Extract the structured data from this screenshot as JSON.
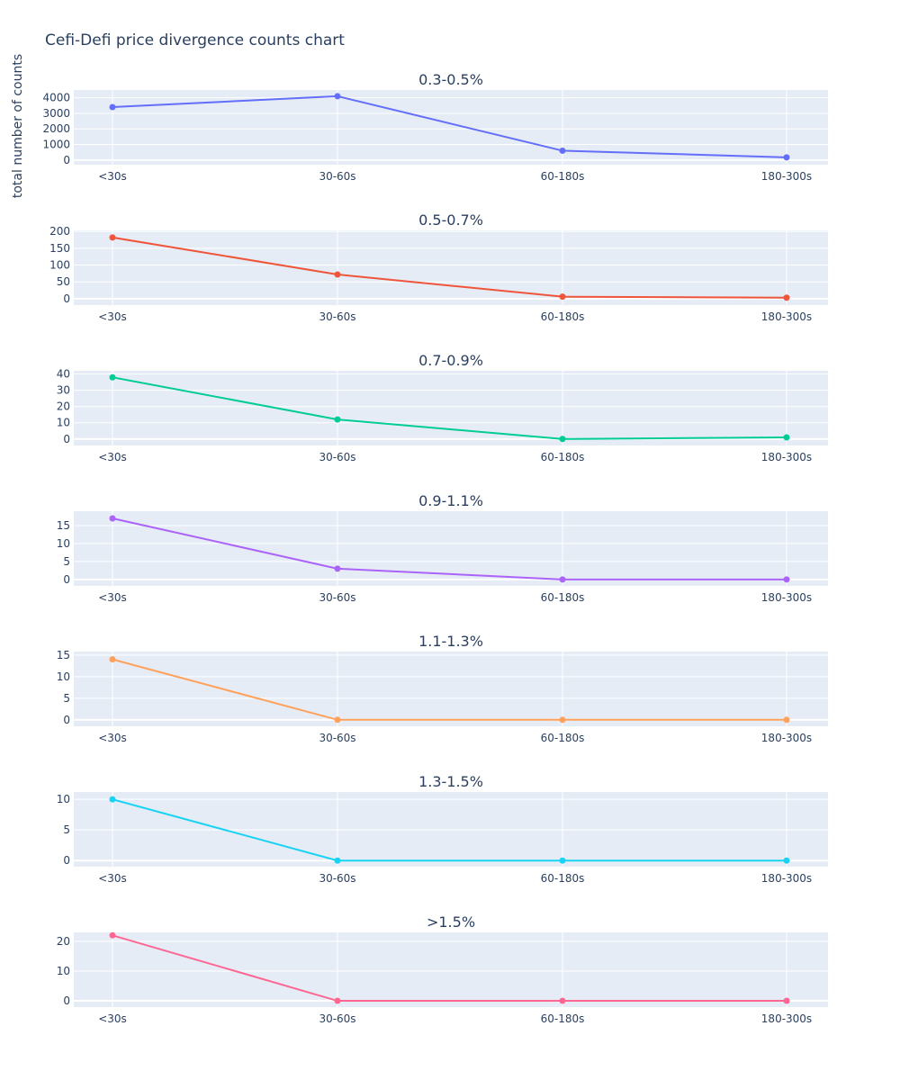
{
  "chart_data": {
    "type": "line",
    "title": "Cefi-Defi price divergence counts chart",
    "ylabel": "total number of counts",
    "xlabel": "",
    "categories": [
      "<30s",
      "30-60s",
      "60-180s",
      "180-300s"
    ],
    "grid": true,
    "legend": "none",
    "subplots": [
      {
        "title": "0.3-0.5%",
        "color": "#636efa",
        "values": [
          3400,
          4100,
          600,
          170
        ],
        "ylim": [
          -300,
          4500
        ],
        "yticks": [
          0,
          1000,
          2000,
          3000,
          4000
        ]
      },
      {
        "title": "0.5-0.7%",
        "color": "#ef553b",
        "values": [
          182,
          72,
          6,
          3
        ],
        "ylim": [
          -19,
          203
        ],
        "yticks": [
          0,
          50,
          100,
          150,
          200
        ]
      },
      {
        "title": "0.7-0.9%",
        "color": "#00cc96",
        "values": [
          38,
          12,
          0,
          1
        ],
        "ylim": [
          -4,
          42
        ],
        "yticks": [
          0,
          10,
          20,
          30,
          40
        ]
      },
      {
        "title": "0.9-1.1%",
        "color": "#ab63fa",
        "values": [
          17,
          3,
          0,
          0
        ],
        "ylim": [
          -1.8,
          19
        ],
        "yticks": [
          0,
          5,
          10,
          15
        ]
      },
      {
        "title": "1.1-1.3%",
        "color": "#ffa15a",
        "values": [
          14,
          0,
          0,
          0
        ],
        "ylim": [
          -1.5,
          15.8
        ],
        "yticks": [
          0,
          5,
          10,
          15
        ]
      },
      {
        "title": "1.3-1.5%",
        "color": "#19d3f3",
        "values": [
          10,
          0,
          0,
          0
        ],
        "ylim": [
          -1,
          11.2
        ],
        "yticks": [
          0,
          5,
          10
        ]
      },
      {
        "title": ">1.5%",
        "color": "#ff6692",
        "values": [
          22,
          0,
          0,
          0
        ],
        "ylim": [
          -2.1,
          23
        ],
        "yticks": [
          0,
          10,
          20
        ]
      }
    ]
  }
}
